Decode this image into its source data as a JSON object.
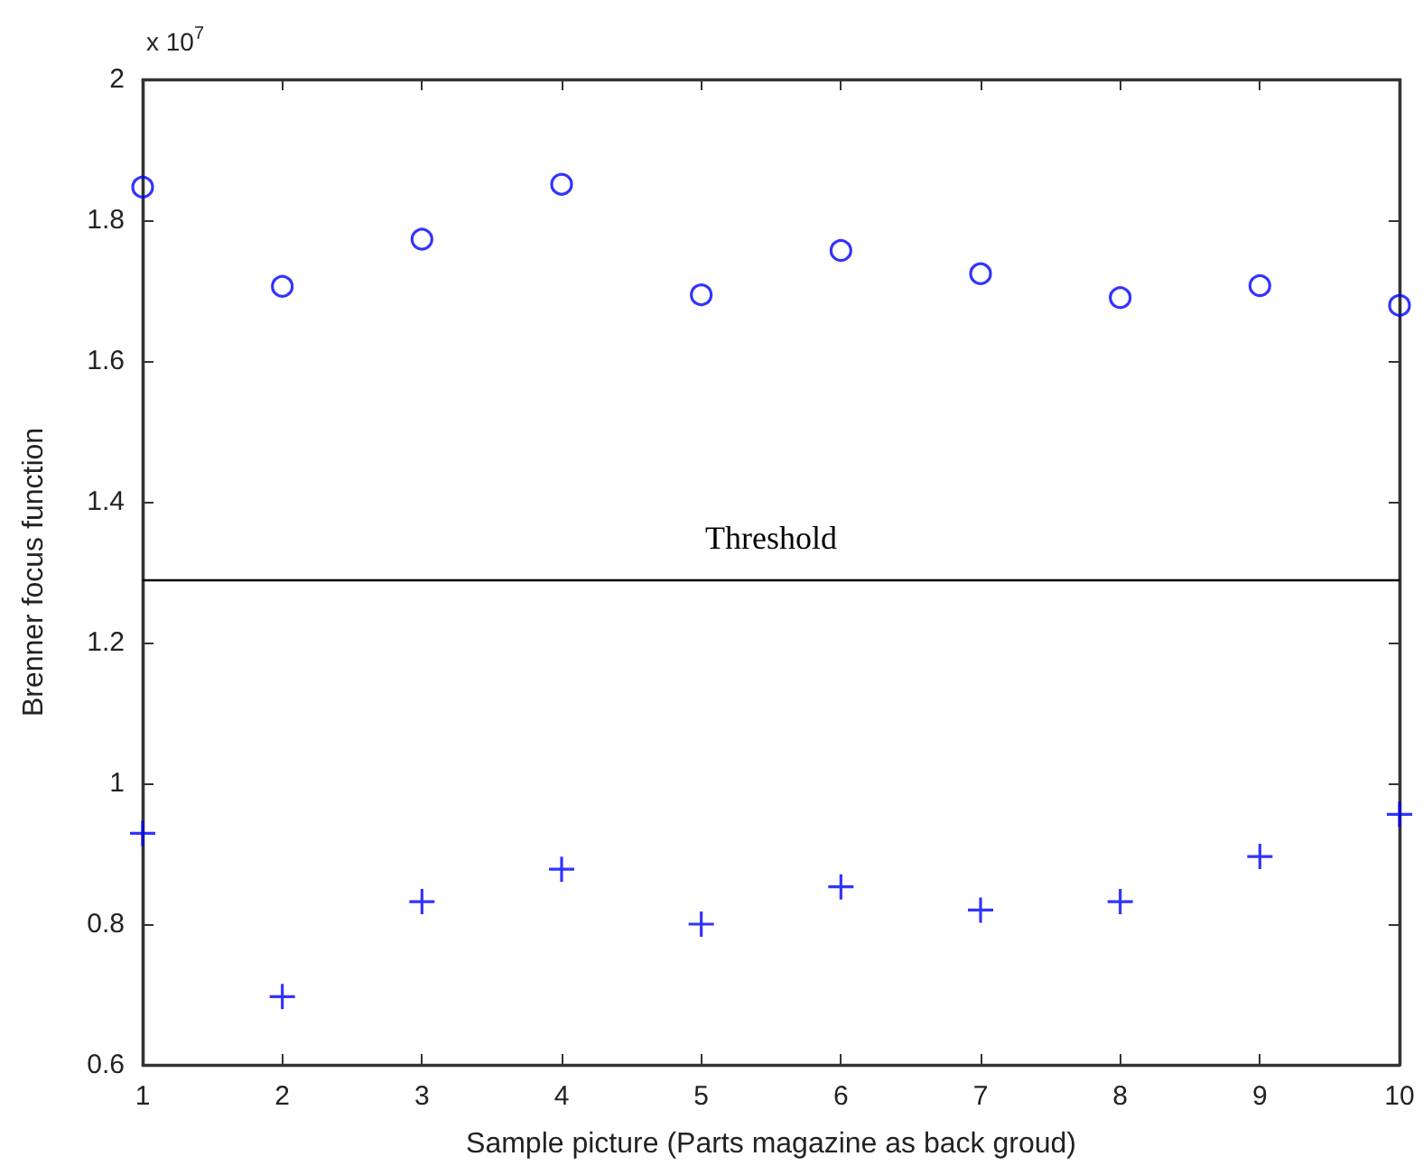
{
  "chart_data": {
    "type": "scatter",
    "xlabel": "Sample picture (Parts magazine as back groud)",
    "ylabel": "Brenner focus function",
    "x": [
      1,
      2,
      3,
      4,
      5,
      6,
      7,
      8,
      9,
      10
    ],
    "series": [
      {
        "color": "#0000ff",
        "marker": "circle",
        "values": [
          1.847,
          1.706,
          1.773,
          1.851,
          1.694,
          1.757,
          1.724,
          1.69,
          1.707,
          1.679
        ]
      },
      {
        "color": "#0000ff",
        "marker": "cross",
        "values": [
          0.929,
          0.697,
          0.832,
          0.878,
          0.8,
          0.853,
          0.82,
          0.832,
          0.896,
          0.956
        ]
      }
    ],
    "xlim": [
      1,
      10
    ],
    "xticks": [
      1,
      2,
      3,
      4,
      5,
      6,
      7,
      8,
      9,
      10
    ],
    "ylim": [
      0.6,
      2
    ],
    "yticks": [
      0.6,
      0.8,
      1,
      1.2,
      1.4,
      1.6,
      1.8,
      2
    ],
    "ref_lines": [
      {
        "axis": "y",
        "value": 1.294,
        "label": "Threshold",
        "color": "#000000"
      }
    ],
    "annotations": [
      "x 10$^{7}$"
    ]
  }
}
